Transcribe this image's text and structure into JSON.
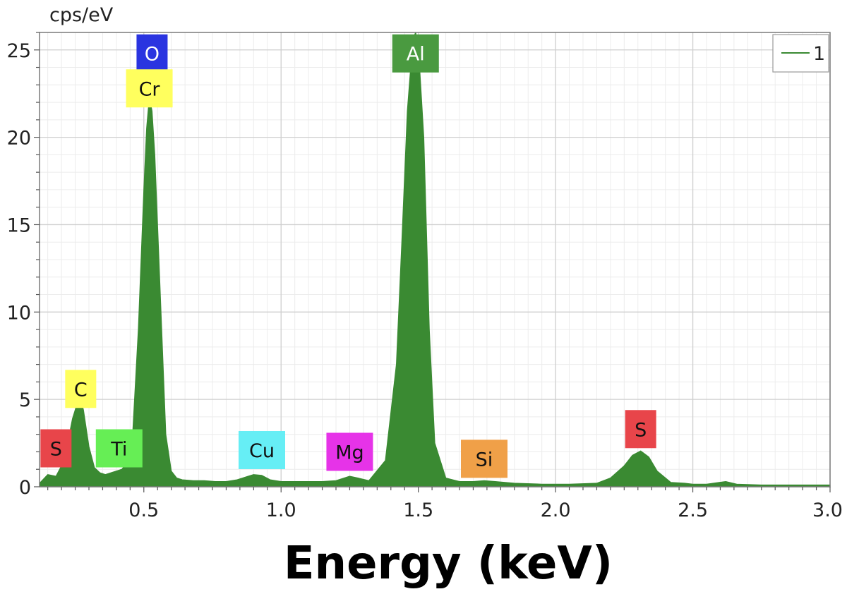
{
  "chart_data": {
    "type": "area",
    "ylabel": "cps/eV",
    "xlabel": "Energy (keV)",
    "xlim": [
      0.12,
      3.0
    ],
    "ylim": [
      0,
      26
    ],
    "x_ticks": [
      "0.5",
      "1.0",
      "1.5",
      "2.0",
      "2.5",
      "3.0"
    ],
    "y_ticks": [
      "0",
      "5",
      "10",
      "15",
      "20",
      "25"
    ],
    "grid": true,
    "legend": {
      "position": "top-right",
      "entries": [
        "1"
      ]
    },
    "series": [
      {
        "name": "1",
        "color": "#3a8a32",
        "x": [
          0.12,
          0.15,
          0.18,
          0.2,
          0.22,
          0.24,
          0.26,
          0.27,
          0.28,
          0.3,
          0.32,
          0.34,
          0.36,
          0.38,
          0.4,
          0.42,
          0.44,
          0.46,
          0.48,
          0.5,
          0.51,
          0.52,
          0.53,
          0.54,
          0.56,
          0.58,
          0.6,
          0.62,
          0.64,
          0.68,
          0.72,
          0.76,
          0.8,
          0.84,
          0.88,
          0.9,
          0.93,
          0.96,
          1.0,
          1.05,
          1.1,
          1.15,
          1.2,
          1.25,
          1.28,
          1.32,
          1.38,
          1.42,
          1.44,
          1.46,
          1.48,
          1.49,
          1.5,
          1.52,
          1.54,
          1.56,
          1.6,
          1.65,
          1.7,
          1.74,
          1.78,
          1.85,
          1.95,
          2.05,
          2.15,
          2.2,
          2.25,
          2.28,
          2.31,
          2.34,
          2.37,
          2.42,
          2.47,
          2.5,
          2.55,
          2.62,
          2.66,
          2.75,
          2.85,
          3.0
        ],
        "values": [
          0.2,
          0.7,
          0.6,
          1.2,
          2.3,
          3.9,
          4.9,
          5.0,
          4.4,
          2.3,
          1.1,
          0.8,
          0.7,
          0.8,
          0.9,
          1.0,
          1.4,
          3.2,
          9.0,
          17.0,
          20.5,
          22.3,
          21.5,
          19.0,
          11.0,
          3.0,
          0.9,
          0.5,
          0.4,
          0.35,
          0.35,
          0.3,
          0.3,
          0.4,
          0.6,
          0.7,
          0.65,
          0.4,
          0.3,
          0.3,
          0.3,
          0.3,
          0.35,
          0.6,
          0.5,
          0.35,
          1.5,
          7.0,
          14.0,
          21.5,
          25.6,
          26.0,
          25.2,
          20.0,
          9.0,
          2.5,
          0.5,
          0.3,
          0.3,
          0.35,
          0.3,
          0.2,
          0.15,
          0.15,
          0.2,
          0.5,
          1.2,
          1.8,
          2.05,
          1.7,
          0.9,
          0.25,
          0.2,
          0.15,
          0.15,
          0.3,
          0.15,
          0.1,
          0.1,
          0.1
        ]
      }
    ],
    "peak_labels": [
      {
        "text": "S",
        "x": 0.18,
        "y": 2.2,
        "bg": "#e8454a",
        "fg": "#111111"
      },
      {
        "text": "C",
        "x": 0.27,
        "y": 5.6,
        "bg": "#ffff5e",
        "fg": "#111111"
      },
      {
        "text": "Ti",
        "x": 0.41,
        "y": 2.2,
        "bg": "#66ee55",
        "fg": "#111111"
      },
      {
        "text": "O",
        "x": 0.53,
        "y": 24.8,
        "bg": "#2a34e0",
        "fg": "#ffffff"
      },
      {
        "text": "Cr",
        "x": 0.52,
        "y": 22.8,
        "bg": "#ffff5e",
        "fg": "#111111"
      },
      {
        "text": "Cu",
        "x": 0.93,
        "y": 2.1,
        "bg": "#66eef5",
        "fg": "#111111"
      },
      {
        "text": "Mg",
        "x": 1.25,
        "y": 2.0,
        "bg": "#e633e8",
        "fg": "#111111"
      },
      {
        "text": "Al",
        "x": 1.49,
        "y": 24.8,
        "bg": "#4a9a40",
        "fg": "#ffffff"
      },
      {
        "text": "Si",
        "x": 1.74,
        "y": 1.6,
        "bg": "#f0a048",
        "fg": "#111111"
      },
      {
        "text": "S",
        "x": 2.31,
        "y": 3.3,
        "bg": "#e8454a",
        "fg": "#111111"
      }
    ]
  }
}
